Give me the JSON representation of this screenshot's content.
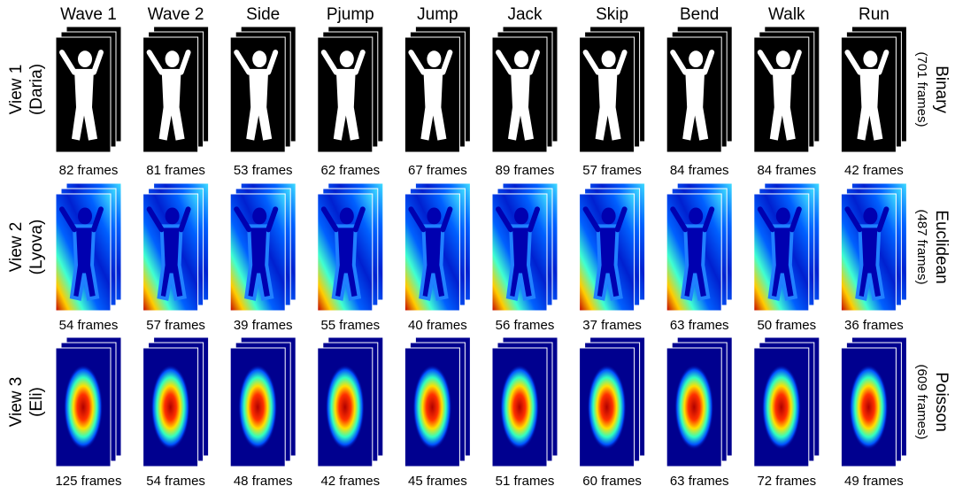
{
  "columns": [
    "Wave 1",
    "Wave 2",
    "Side",
    "Pjump",
    "Jump",
    "Jack",
    "Skip",
    "Bend",
    "Walk",
    "Run"
  ],
  "rows": [
    {
      "view": "View 1",
      "subject": "(Daria)",
      "method": "Binary",
      "total": "(701 frames)",
      "frames": [
        "82 frames",
        "81 frames",
        "53 frames",
        "62 frames",
        "67 frames",
        "89 frames",
        "57 frames",
        "84 frames",
        "84 frames",
        "42 frames"
      ]
    },
    {
      "view": "View 2",
      "subject": "(Lyova)",
      "method": "Euclidean",
      "total": "(487 frames)",
      "frames": [
        "54 frames",
        "57 frames",
        "39 frames",
        "55 frames",
        "40 frames",
        "56 frames",
        "37 frames",
        "63 frames",
        "50 frames",
        "36 frames"
      ]
    },
    {
      "view": "View 3",
      "subject": "(Eli)",
      "method": "Poisson",
      "total": "(609 frames)",
      "frames": [
        "125 frames",
        "54 frames",
        "48 frames",
        "42 frames",
        "45 frames",
        "51 frames",
        "60 frames",
        "63 frames",
        "72 frames",
        "49 frames"
      ]
    }
  ]
}
